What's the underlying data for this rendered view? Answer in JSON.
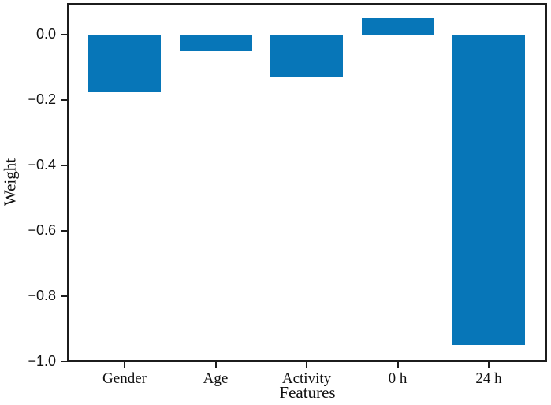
{
  "chart_data": {
    "type": "bar",
    "categories": [
      "Gender",
      "Age",
      "Activity",
      "0 h",
      "24 h"
    ],
    "values": [
      -0.175,
      -0.05,
      -0.13,
      0.05,
      -0.95
    ],
    "title": "",
    "xlabel": "Features",
    "ylabel": "Weight",
    "ylim": [
      -1.0,
      0.097
    ],
    "yticks": [
      0.0,
      -0.2,
      -0.4,
      -0.6,
      -0.8,
      -1.0
    ],
    "ytick_labels": [
      "0.0",
      "−0.2",
      "−0.4",
      "−0.6",
      "−0.8",
      "−1.0"
    ],
    "bar_color": "#0776b8",
    "axis_color": "#1c1c1c",
    "text_color": "#111111",
    "grid": false,
    "legend": null
  }
}
